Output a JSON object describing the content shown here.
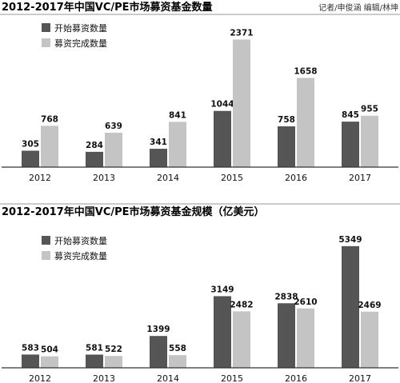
{
  "credit": "记者/申俊涵  编辑/林坤",
  "colors": {
    "start": "#555555",
    "complete": "#c4c4c4",
    "axis": "#333333",
    "divider": "#999999",
    "text": "#111111"
  },
  "chart_data": [
    {
      "type": "bar",
      "title": "2012-2017年中国VC/PE市场募资基金数量",
      "xlabel": "",
      "ylabel": "",
      "categories": [
        "2012",
        "2013",
        "2014",
        "2015",
        "2016",
        "2017"
      ],
      "series": [
        {
          "name": "开始募资数量",
          "values": [
            305,
            284,
            341,
            1044,
            758,
            845
          ]
        },
        {
          "name": "募资完成数量",
          "values": [
            768,
            639,
            841,
            2371,
            1658,
            955
          ]
        }
      ],
      "ylim": [
        0,
        2600
      ],
      "grid": false,
      "legend": "top-left"
    },
    {
      "type": "bar",
      "title": "2012-2017年中国VC/PE市场募资基金规模（亿美元）",
      "xlabel": "",
      "ylabel": "",
      "categories": [
        "2012",
        "2013",
        "2014",
        "2015",
        "2016",
        "2017"
      ],
      "series": [
        {
          "name": "开始募资数量",
          "values": [
            583,
            581,
            1399,
            3149,
            2838,
            5349
          ]
        },
        {
          "name": "募资完成数量",
          "values": [
            504,
            522,
            558,
            2482,
            2610,
            2469
          ]
        }
      ],
      "ylim": [
        0,
        5800
      ],
      "grid": false,
      "legend": "top-left"
    }
  ]
}
